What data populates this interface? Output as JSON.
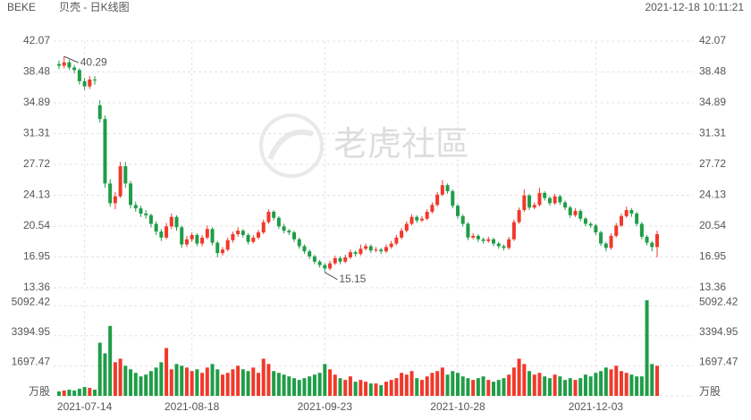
{
  "header": {
    "symbol": "BEKE",
    "name": "贝壳 - 日K线图",
    "timestamp": "2021-12-18 10:11:21"
  },
  "watermark": "老虎社區",
  "chart_data": {
    "type": "candlestick",
    "up_color": "#f0392b",
    "down_color": "#1f9d47",
    "grid": true,
    "ylim": [
      13.36,
      42.07
    ],
    "yticks": [
      42.07,
      38.48,
      34.89,
      31.31,
      27.72,
      24.13,
      20.54,
      16.95,
      13.36
    ],
    "volume_ylim": [
      0,
      5400
    ],
    "volume_yticks": [
      {
        "value": 0,
        "label": "万股"
      },
      1697.47,
      3394.95,
      5092.42
    ],
    "categories": [
      null,
      null,
      null,
      null,
      null,
      "2021-07-14",
      null,
      null,
      null,
      null,
      null,
      null,
      null,
      null,
      null,
      null,
      null,
      null,
      null,
      null,
      null,
      null,
      null,
      null,
      null,
      null,
      "2021-08-18",
      null,
      null,
      null,
      null,
      null,
      null,
      null,
      null,
      null,
      null,
      null,
      null,
      null,
      null,
      null,
      null,
      null,
      null,
      null,
      null,
      null,
      null,
      null,
      null,
      null,
      "2021-09-23",
      null,
      null,
      null,
      null,
      null,
      null,
      null,
      null,
      null,
      null,
      null,
      null,
      null,
      null,
      null,
      null,
      null,
      null,
      null,
      null,
      null,
      null,
      null,
      null,
      null,
      "2021-10-28",
      null,
      null,
      null,
      null,
      null,
      null,
      null,
      null,
      null,
      null,
      null,
      null,
      null,
      null,
      null,
      null,
      null,
      null,
      null,
      null,
      null,
      null,
      null,
      null,
      null,
      null,
      "2021-12-03",
      null,
      null,
      null,
      null,
      null,
      null,
      null,
      null,
      null,
      null,
      null,
      null
    ],
    "candles": [
      [
        39.4,
        39.8,
        38.8,
        39.2
      ],
      [
        39.2,
        40.29,
        38.9,
        39.6
      ],
      [
        39.6,
        39.9,
        38.7,
        39.0
      ],
      [
        39.0,
        39.3,
        38.3,
        38.7
      ],
      [
        38.7,
        38.9,
        37.0,
        37.4
      ],
      [
        37.4,
        37.8,
        36.4,
        36.8
      ],
      [
        36.8,
        38.0,
        36.5,
        37.6
      ],
      [
        37.6,
        38.0,
        37.0,
        37.5
      ],
      [
        34.6,
        35.2,
        32.6,
        33.0
      ],
      [
        33.0,
        33.4,
        25.0,
        25.5
      ],
      [
        25.5,
        26.0,
        22.8,
        23.2
      ],
      [
        23.2,
        24.5,
        22.5,
        24.0
      ],
      [
        24.0,
        28.0,
        23.8,
        27.5
      ],
      [
        27.5,
        28.0,
        25.0,
        25.5
      ],
      [
        25.5,
        25.8,
        22.6,
        23.0
      ],
      [
        23.0,
        23.4,
        22.2,
        22.6
      ],
      [
        22.6,
        22.9,
        21.6,
        22.0
      ],
      [
        22.0,
        22.4,
        21.4,
        21.8
      ],
      [
        21.8,
        22.0,
        20.4,
        20.8
      ],
      [
        20.8,
        21.1,
        19.5,
        19.9
      ],
      [
        19.9,
        20.2,
        18.8,
        19.2
      ],
      [
        19.2,
        20.9,
        19.0,
        20.5
      ],
      [
        20.5,
        22.0,
        20.2,
        21.6
      ],
      [
        21.6,
        21.8,
        20.0,
        20.4
      ],
      [
        20.4,
        20.6,
        18.0,
        18.4
      ],
      [
        18.4,
        19.4,
        18.1,
        19.0
      ],
      [
        19.0,
        19.8,
        18.7,
        19.5
      ],
      [
        19.5,
        19.7,
        18.2,
        18.5
      ],
      [
        18.5,
        19.5,
        18.2,
        19.2
      ],
      [
        19.2,
        20.6,
        19.0,
        20.2
      ],
      [
        20.2,
        20.4,
        18.3,
        18.6
      ],
      [
        18.6,
        18.8,
        16.9,
        17.4
      ],
      [
        17.4,
        18.1,
        17.1,
        17.8
      ],
      [
        17.8,
        19.2,
        17.6,
        18.9
      ],
      [
        18.9,
        19.9,
        18.6,
        19.6
      ],
      [
        19.6,
        20.4,
        19.3,
        20.0
      ],
      [
        20.0,
        20.2,
        19.2,
        19.5
      ],
      [
        19.5,
        19.7,
        18.4,
        18.7
      ],
      [
        18.7,
        19.5,
        18.5,
        19.2
      ],
      [
        19.2,
        20.1,
        19.0,
        19.8
      ],
      [
        19.8,
        21.3,
        19.6,
        21.0
      ],
      [
        21.0,
        22.5,
        20.8,
        22.2
      ],
      [
        22.2,
        22.4,
        21.2,
        21.5
      ],
      [
        21.5,
        21.7,
        20.2,
        20.5
      ],
      [
        20.5,
        20.8,
        19.7,
        20.0
      ],
      [
        20.0,
        20.2,
        19.5,
        19.8
      ],
      [
        19.8,
        20.0,
        18.7,
        19.0
      ],
      [
        19.0,
        19.2,
        17.9,
        18.2
      ],
      [
        18.2,
        18.4,
        17.3,
        17.6
      ],
      [
        17.6,
        17.8,
        16.7,
        17.0
      ],
      [
        17.0,
        17.2,
        16.1,
        16.4
      ],
      [
        16.4,
        16.6,
        15.7,
        16.0
      ],
      [
        16.0,
        16.2,
        15.15,
        15.6
      ],
      [
        15.6,
        16.5,
        15.4,
        16.2
      ],
      [
        16.2,
        17.1,
        16.0,
        16.8
      ],
      [
        16.8,
        17.0,
        16.1,
        16.4
      ],
      [
        16.4,
        17.2,
        16.2,
        16.9
      ],
      [
        16.9,
        17.8,
        16.7,
        17.5
      ],
      [
        17.5,
        17.7,
        17.0,
        17.3
      ],
      [
        17.3,
        18.4,
        17.1,
        17.9
      ],
      [
        17.9,
        18.5,
        17.7,
        18.2
      ],
      [
        18.2,
        18.4,
        17.4,
        17.7
      ],
      [
        17.7,
        18.1,
        17.5,
        17.8
      ],
      [
        17.8,
        18.0,
        17.3,
        17.6
      ],
      [
        17.6,
        18.4,
        17.4,
        18.1
      ],
      [
        18.1,
        18.8,
        17.9,
        18.5
      ],
      [
        18.5,
        19.5,
        18.3,
        19.2
      ],
      [
        19.2,
        20.3,
        19.0,
        20.0
      ],
      [
        20.0,
        21.1,
        19.8,
        20.8
      ],
      [
        20.8,
        21.9,
        20.6,
        21.6
      ],
      [
        21.6,
        21.8,
        20.9,
        21.2
      ],
      [
        21.2,
        21.7,
        21.0,
        21.4
      ],
      [
        21.4,
        22.5,
        21.2,
        22.2
      ],
      [
        22.2,
        23.3,
        22.0,
        23.0
      ],
      [
        23.0,
        24.5,
        22.8,
        24.2
      ],
      [
        24.2,
        25.9,
        24.0,
        25.3
      ],
      [
        25.3,
        25.5,
        24.3,
        24.6
      ],
      [
        24.6,
        24.8,
        22.6,
        22.9
      ],
      [
        22.9,
        23.1,
        21.4,
        21.7
      ],
      [
        21.7,
        21.9,
        20.5,
        20.8
      ],
      [
        20.8,
        21.0,
        18.9,
        19.2
      ],
      [
        19.2,
        19.7,
        19.0,
        19.4
      ],
      [
        19.4,
        19.6,
        18.7,
        19.0
      ],
      [
        19.0,
        19.2,
        18.5,
        18.8
      ],
      [
        18.8,
        19.3,
        18.6,
        19.0
      ],
      [
        19.0,
        19.2,
        18.2,
        18.5
      ],
      [
        18.5,
        18.7,
        17.9,
        18.2
      ],
      [
        18.2,
        18.4,
        17.7,
        18.0
      ],
      [
        18.0,
        19.3,
        17.8,
        19.0
      ],
      [
        19.0,
        21.3,
        18.8,
        21.0
      ],
      [
        21.0,
        22.7,
        20.8,
        22.4
      ],
      [
        22.4,
        24.8,
        22.2,
        24.1
      ],
      [
        24.1,
        24.3,
        22.4,
        22.7
      ],
      [
        22.7,
        23.3,
        22.5,
        23.0
      ],
      [
        23.0,
        25.0,
        22.8,
        24.4
      ],
      [
        24.4,
        24.6,
        23.5,
        23.8
      ],
      [
        23.8,
        24.0,
        22.9,
        23.2
      ],
      [
        23.2,
        24.3,
        23.0,
        24.0
      ],
      [
        24.0,
        24.2,
        23.0,
        23.3
      ],
      [
        23.3,
        23.5,
        22.4,
        22.7
      ],
      [
        22.7,
        22.9,
        21.5,
        21.8
      ],
      [
        21.8,
        22.6,
        21.6,
        22.3
      ],
      [
        22.3,
        22.5,
        21.1,
        21.4
      ],
      [
        21.4,
        21.6,
        20.5,
        20.8
      ],
      [
        20.8,
        21.0,
        20.3,
        20.6
      ],
      [
        20.6,
        20.8,
        19.5,
        19.8
      ],
      [
        19.8,
        20.0,
        18.2,
        18.5
      ],
      [
        18.5,
        18.7,
        17.6,
        18.0
      ],
      [
        18.0,
        19.7,
        17.8,
        19.4
      ],
      [
        19.4,
        20.9,
        19.2,
        20.6
      ],
      [
        20.6,
        22.0,
        20.4,
        21.7
      ],
      [
        21.7,
        22.8,
        21.5,
        22.4
      ],
      [
        22.4,
        22.6,
        21.6,
        22.0
      ],
      [
        22.0,
        22.2,
        20.5,
        20.8
      ],
      [
        20.8,
        21.0,
        19.0,
        19.3
      ],
      [
        19.3,
        19.5,
        18.3,
        18.6
      ],
      [
        18.6,
        18.8,
        17.6,
        18.1
      ],
      [
        18.1,
        20.0,
        16.9,
        19.6
      ]
    ],
    "volumes": [
      250,
      300,
      350,
      300,
      400,
      500,
      450,
      350,
      3000,
      2400,
      3950,
      1900,
      2100,
      1700,
      1500,
      1300,
      1100,
      1200,
      1400,
      1600,
      1900,
      2700,
      1500,
      1800,
      1700,
      1600,
      1400,
      1500,
      1300,
      1600,
      1800,
      1500,
      1200,
      1300,
      1500,
      1700,
      1500,
      1400,
      1600,
      1300,
      2100,
      1800,
      1400,
      1300,
      1200,
      1100,
      1000,
      900,
      1000,
      1100,
      1200,
      1300,
      1800,
      1500,
      1200,
      1000,
      900,
      1100,
      800,
      900,
      800,
      700,
      700,
      600,
      800,
      900,
      1000,
      1300,
      1200,
      1400,
      1000,
      900,
      1100,
      1300,
      1400,
      1600,
      1200,
      1400,
      1300,
      1100,
      1000,
      900,
      1000,
      1100,
      900,
      800,
      900,
      1000,
      1200,
      1600,
      2100,
      1800,
      1400,
      1200,
      1300,
      1100,
      1000,
      1200,
      1100,
      900,
      1000,
      900,
      1000,
      1200,
      1100,
      1300,
      1400,
      1600,
      1500,
      1700,
      1400,
      1300,
      1200,
      1100,
      1100,
      5400,
      1800,
      1700
    ]
  }
}
